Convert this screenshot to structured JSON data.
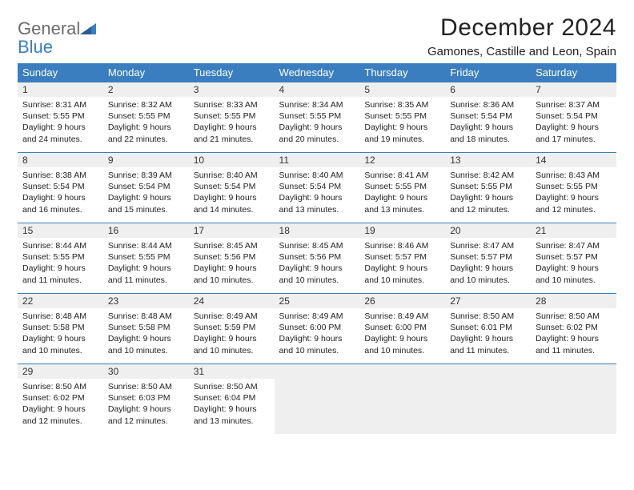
{
  "logo": {
    "line1": "General",
    "line2": "Blue"
  },
  "title": "December 2024",
  "subtitle": "Gamones, Castille and Leon, Spain",
  "colors": {
    "header_bg": "#3a7ebf",
    "header_fg": "#ffffff",
    "daynum_bg": "#efefef",
    "border": "#3a7ebf",
    "logo_gray": "#6b6b6b",
    "logo_blue": "#3a7ebf"
  },
  "day_names": [
    "Sunday",
    "Monday",
    "Tuesday",
    "Wednesday",
    "Thursday",
    "Friday",
    "Saturday"
  ],
  "weeks": [
    [
      {
        "n": "1",
        "sunrise": "Sunrise: 8:31 AM",
        "sunset": "Sunset: 5:55 PM",
        "day": "Daylight: 9 hours and 24 minutes."
      },
      {
        "n": "2",
        "sunrise": "Sunrise: 8:32 AM",
        "sunset": "Sunset: 5:55 PM",
        "day": "Daylight: 9 hours and 22 minutes."
      },
      {
        "n": "3",
        "sunrise": "Sunrise: 8:33 AM",
        "sunset": "Sunset: 5:55 PM",
        "day": "Daylight: 9 hours and 21 minutes."
      },
      {
        "n": "4",
        "sunrise": "Sunrise: 8:34 AM",
        "sunset": "Sunset: 5:55 PM",
        "day": "Daylight: 9 hours and 20 minutes."
      },
      {
        "n": "5",
        "sunrise": "Sunrise: 8:35 AM",
        "sunset": "Sunset: 5:55 PM",
        "day": "Daylight: 9 hours and 19 minutes."
      },
      {
        "n": "6",
        "sunrise": "Sunrise: 8:36 AM",
        "sunset": "Sunset: 5:54 PM",
        "day": "Daylight: 9 hours and 18 minutes."
      },
      {
        "n": "7",
        "sunrise": "Sunrise: 8:37 AM",
        "sunset": "Sunset: 5:54 PM",
        "day": "Daylight: 9 hours and 17 minutes."
      }
    ],
    [
      {
        "n": "8",
        "sunrise": "Sunrise: 8:38 AM",
        "sunset": "Sunset: 5:54 PM",
        "day": "Daylight: 9 hours and 16 minutes."
      },
      {
        "n": "9",
        "sunrise": "Sunrise: 8:39 AM",
        "sunset": "Sunset: 5:54 PM",
        "day": "Daylight: 9 hours and 15 minutes."
      },
      {
        "n": "10",
        "sunrise": "Sunrise: 8:40 AM",
        "sunset": "Sunset: 5:54 PM",
        "day": "Daylight: 9 hours and 14 minutes."
      },
      {
        "n": "11",
        "sunrise": "Sunrise: 8:40 AM",
        "sunset": "Sunset: 5:54 PM",
        "day": "Daylight: 9 hours and 13 minutes."
      },
      {
        "n": "12",
        "sunrise": "Sunrise: 8:41 AM",
        "sunset": "Sunset: 5:55 PM",
        "day": "Daylight: 9 hours and 13 minutes."
      },
      {
        "n": "13",
        "sunrise": "Sunrise: 8:42 AM",
        "sunset": "Sunset: 5:55 PM",
        "day": "Daylight: 9 hours and 12 minutes."
      },
      {
        "n": "14",
        "sunrise": "Sunrise: 8:43 AM",
        "sunset": "Sunset: 5:55 PM",
        "day": "Daylight: 9 hours and 12 minutes."
      }
    ],
    [
      {
        "n": "15",
        "sunrise": "Sunrise: 8:44 AM",
        "sunset": "Sunset: 5:55 PM",
        "day": "Daylight: 9 hours and 11 minutes."
      },
      {
        "n": "16",
        "sunrise": "Sunrise: 8:44 AM",
        "sunset": "Sunset: 5:55 PM",
        "day": "Daylight: 9 hours and 11 minutes."
      },
      {
        "n": "17",
        "sunrise": "Sunrise: 8:45 AM",
        "sunset": "Sunset: 5:56 PM",
        "day": "Daylight: 9 hours and 10 minutes."
      },
      {
        "n": "18",
        "sunrise": "Sunrise: 8:45 AM",
        "sunset": "Sunset: 5:56 PM",
        "day": "Daylight: 9 hours and 10 minutes."
      },
      {
        "n": "19",
        "sunrise": "Sunrise: 8:46 AM",
        "sunset": "Sunset: 5:57 PM",
        "day": "Daylight: 9 hours and 10 minutes."
      },
      {
        "n": "20",
        "sunrise": "Sunrise: 8:47 AM",
        "sunset": "Sunset: 5:57 PM",
        "day": "Daylight: 9 hours and 10 minutes."
      },
      {
        "n": "21",
        "sunrise": "Sunrise: 8:47 AM",
        "sunset": "Sunset: 5:57 PM",
        "day": "Daylight: 9 hours and 10 minutes."
      }
    ],
    [
      {
        "n": "22",
        "sunrise": "Sunrise: 8:48 AM",
        "sunset": "Sunset: 5:58 PM",
        "day": "Daylight: 9 hours and 10 minutes."
      },
      {
        "n": "23",
        "sunrise": "Sunrise: 8:48 AM",
        "sunset": "Sunset: 5:58 PM",
        "day": "Daylight: 9 hours and 10 minutes."
      },
      {
        "n": "24",
        "sunrise": "Sunrise: 8:49 AM",
        "sunset": "Sunset: 5:59 PM",
        "day": "Daylight: 9 hours and 10 minutes."
      },
      {
        "n": "25",
        "sunrise": "Sunrise: 8:49 AM",
        "sunset": "Sunset: 6:00 PM",
        "day": "Daylight: 9 hours and 10 minutes."
      },
      {
        "n": "26",
        "sunrise": "Sunrise: 8:49 AM",
        "sunset": "Sunset: 6:00 PM",
        "day": "Daylight: 9 hours and 10 minutes."
      },
      {
        "n": "27",
        "sunrise": "Sunrise: 8:50 AM",
        "sunset": "Sunset: 6:01 PM",
        "day": "Daylight: 9 hours and 11 minutes."
      },
      {
        "n": "28",
        "sunrise": "Sunrise: 8:50 AM",
        "sunset": "Sunset: 6:02 PM",
        "day": "Daylight: 9 hours and 11 minutes."
      }
    ],
    [
      {
        "n": "29",
        "sunrise": "Sunrise: 8:50 AM",
        "sunset": "Sunset: 6:02 PM",
        "day": "Daylight: 9 hours and 12 minutes."
      },
      {
        "n": "30",
        "sunrise": "Sunrise: 8:50 AM",
        "sunset": "Sunset: 6:03 PM",
        "day": "Daylight: 9 hours and 12 minutes."
      },
      {
        "n": "31",
        "sunrise": "Sunrise: 8:50 AM",
        "sunset": "Sunset: 6:04 PM",
        "day": "Daylight: 9 hours and 13 minutes."
      },
      null,
      null,
      null,
      null
    ]
  ]
}
